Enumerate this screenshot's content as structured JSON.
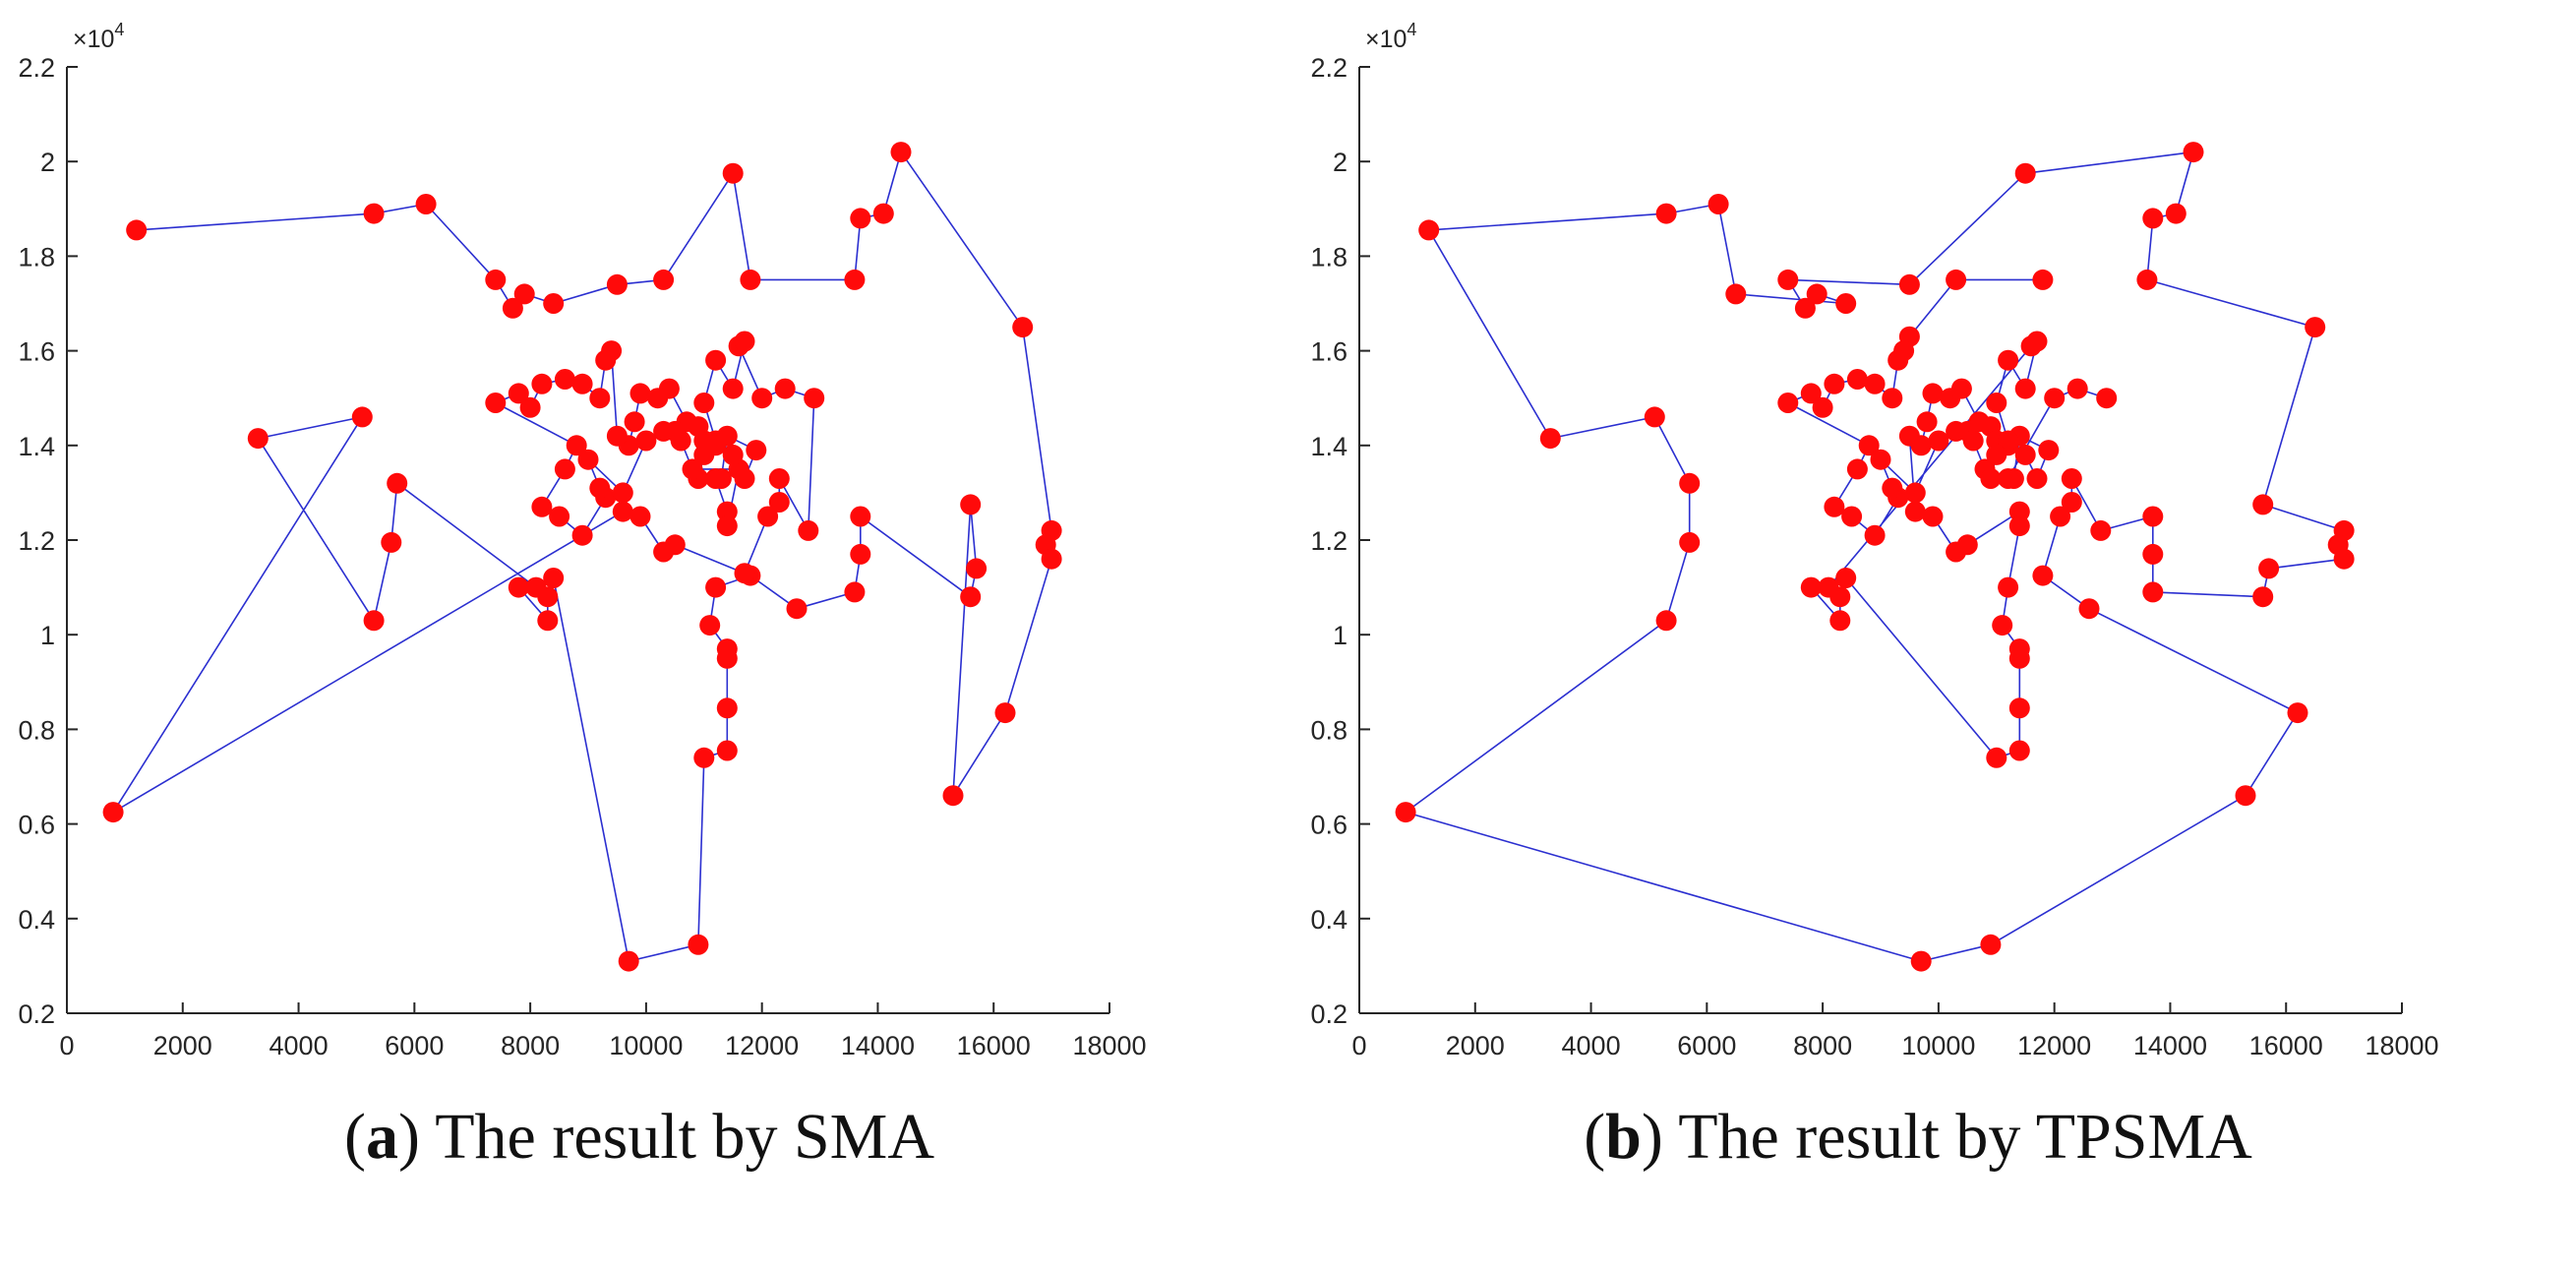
{
  "colors": {
    "line": "#2b2fd0",
    "marker": "#ff0a0a",
    "axis": "#262626"
  },
  "chart_data": [
    {
      "id": "a",
      "type": "line",
      "title": "",
      "xlabel": "",
      "ylabel": "",
      "xlim": [
        0,
        18000
      ],
      "ylim": [
        2000,
        22000
      ],
      "x_ticks": [
        "0",
        "2000",
        "4000",
        "6000",
        "8000",
        "10000",
        "12000",
        "14000",
        "16000",
        "18000"
      ],
      "y_ticks": [
        "0.2",
        "0.4",
        "0.6",
        "0.8",
        "1",
        "1.2",
        "1.4",
        "1.6",
        "1.8",
        "2",
        "2.2"
      ],
      "y_exponent_base": "×10",
      "y_exponent_power": "4",
      "caption_letter": "a",
      "caption_text": "The result by SMA",
      "points": [
        [
          1200,
          18550
        ],
        [
          5300,
          18900
        ],
        [
          6200,
          19100
        ],
        [
          7400,
          17500
        ],
        [
          7700,
          16900
        ],
        [
          7900,
          17200
        ],
        [
          8400,
          17000
        ],
        [
          9500,
          17400
        ],
        [
          10300,
          17500
        ],
        [
          11500,
          19750
        ],
        [
          11800,
          17500
        ],
        [
          13600,
          17500
        ],
        [
          13700,
          18800
        ],
        [
          14100,
          18900
        ],
        [
          14400,
          20200
        ],
        [
          16500,
          16500
        ],
        [
          17000,
          12200
        ],
        [
          16900,
          11900
        ],
        [
          17000,
          11600
        ],
        [
          16200,
          8350
        ],
        [
          15300,
          6600
        ],
        [
          15600,
          12750
        ],
        [
          15700,
          11400
        ],
        [
          15600,
          10800
        ],
        [
          13700,
          12500
        ],
        [
          13700,
          11700
        ],
        [
          13600,
          10900
        ],
        [
          12600,
          10550
        ],
        [
          11800,
          11250
        ],
        [
          11200,
          11000
        ],
        [
          11100,
          10200
        ],
        [
          11400,
          9700
        ],
        [
          11400,
          9500
        ],
        [
          11400,
          8450
        ],
        [
          11400,
          7550
        ],
        [
          11000,
          7400
        ],
        [
          10900,
          3450
        ],
        [
          9700,
          3100
        ],
        [
          8400,
          11200
        ],
        [
          8300,
          10800
        ],
        [
          8300,
          10300
        ],
        [
          7800,
          11000
        ],
        [
          8100,
          11000
        ],
        [
          5700,
          13200
        ],
        [
          5600,
          11950
        ],
        [
          5300,
          10300
        ],
        [
          3300,
          14150
        ],
        [
          5100,
          14600
        ],
        [
          800,
          6250
        ],
        [
          9600,
          12600
        ],
        [
          9900,
          12500
        ],
        [
          10300,
          11750
        ],
        [
          10500,
          11900
        ],
        [
          11700,
          11300
        ],
        [
          12100,
          12500
        ],
        [
          12300,
          12800
        ],
        [
          12300,
          13300
        ],
        [
          12800,
          12200
        ],
        [
          12900,
          15000
        ],
        [
          12400,
          15200
        ],
        [
          12000,
          15000
        ],
        [
          11600,
          16100
        ],
        [
          11700,
          16200
        ],
        [
          11500,
          15200
        ],
        [
          11200,
          15800
        ],
        [
          11000,
          14900
        ],
        [
          11200,
          14100
        ],
        [
          11000,
          13800
        ],
        [
          10900,
          13300
        ],
        [
          11200,
          13300
        ],
        [
          11400,
          12600
        ],
        [
          11400,
          12300
        ],
        [
          11600,
          13500
        ],
        [
          10800,
          13500
        ],
        [
          10600,
          14100
        ],
        [
          10700,
          14500
        ],
        [
          10400,
          15200
        ],
        [
          10200,
          15000
        ],
        [
          9900,
          15100
        ],
        [
          9800,
          14500
        ],
        [
          9700,
          14000
        ],
        [
          9500,
          14200
        ],
        [
          9400,
          16000
        ],
        [
          9300,
          15800
        ],
        [
          9200,
          15000
        ],
        [
          8900,
          15300
        ],
        [
          8600,
          15400
        ],
        [
          8200,
          15300
        ],
        [
          8000,
          14800
        ],
        [
          7800,
          15100
        ],
        [
          7400,
          14900
        ],
        [
          8800,
          14000
        ],
        [
          8600,
          13500
        ],
        [
          8200,
          12700
        ],
        [
          8500,
          12500
        ],
        [
          8900,
          12100
        ],
        [
          9300,
          12900
        ],
        [
          9200,
          13100
        ],
        [
          9000,
          13700
        ],
        [
          9600,
          13000
        ],
        [
          10000,
          14100
        ],
        [
          10300,
          14300
        ],
        [
          10500,
          14300
        ],
        [
          10900,
          14400
        ],
        [
          11000,
          14100
        ],
        [
          11200,
          14000
        ],
        [
          11500,
          13800
        ],
        [
          11700,
          13300
        ],
        [
          11900,
          13900
        ],
        [
          11400,
          14200
        ],
        [
          11300,
          13300
        ]
      ]
    },
    {
      "id": "b",
      "type": "line",
      "title": "",
      "xlabel": "",
      "ylabel": "",
      "xlim": [
        0,
        18000
      ],
      "ylim": [
        2000,
        22000
      ],
      "x_ticks": [
        "0",
        "2000",
        "4000",
        "6000",
        "8000",
        "10000",
        "12000",
        "14000",
        "16000",
        "18000"
      ],
      "y_ticks": [
        "0.2",
        "0.4",
        "0.6",
        "0.8",
        "1",
        "1.2",
        "1.4",
        "1.6",
        "1.8",
        "2",
        "2.2"
      ],
      "y_exponent_base": "×10",
      "y_exponent_power": "4",
      "caption_letter": "b",
      "caption_text": "The result by TPSMA",
      "points": [
        [
          800,
          6250
        ],
        [
          5300,
          10300
        ],
        [
          5700,
          11950
        ],
        [
          5700,
          13200
        ],
        [
          5100,
          14600
        ],
        [
          3300,
          14150
        ],
        [
          1200,
          18550
        ],
        [
          5300,
          18900
        ],
        [
          6200,
          19100
        ],
        [
          6500,
          17200
        ],
        [
          8400,
          17000
        ],
        [
          7900,
          17200
        ],
        [
          7700,
          16900
        ],
        [
          7400,
          17500
        ],
        [
          9500,
          17400
        ],
        [
          11500,
          19750
        ],
        [
          14400,
          20200
        ],
        [
          14100,
          18900
        ],
        [
          13700,
          18800
        ],
        [
          13600,
          17500
        ],
        [
          16500,
          16500
        ],
        [
          15600,
          12750
        ],
        [
          17000,
          12200
        ],
        [
          16900,
          11900
        ],
        [
          17000,
          11600
        ],
        [
          15700,
          11400
        ],
        [
          15600,
          10800
        ],
        [
          13700,
          10900
        ],
        [
          13700,
          11700
        ],
        [
          13700,
          12500
        ],
        [
          12800,
          12200
        ],
        [
          12300,
          13300
        ],
        [
          12300,
          12800
        ],
        [
          12100,
          12500
        ],
        [
          11800,
          11250
        ],
        [
          12600,
          10550
        ],
        [
          16200,
          8350
        ],
        [
          15300,
          6600
        ],
        [
          10900,
          3450
        ],
        [
          9700,
          3100
        ],
        [
          800,
          6250
        ]
      ],
      "inner_points": [
        [
          11800,
          17500
        ],
        [
          10300,
          17500
        ],
        [
          9500,
          16300
        ],
        [
          9400,
          16000
        ],
        [
          9300,
          15800
        ],
        [
          9200,
          15000
        ],
        [
          8900,
          15300
        ],
        [
          8600,
          15400
        ],
        [
          8200,
          15300
        ],
        [
          8000,
          14800
        ],
        [
          7800,
          15100
        ],
        [
          7400,
          14900
        ],
        [
          8800,
          14000
        ],
        [
          8600,
          13500
        ],
        [
          8200,
          12700
        ],
        [
          8500,
          12500
        ],
        [
          8900,
          12100
        ],
        [
          9300,
          12900
        ],
        [
          9200,
          13100
        ],
        [
          9000,
          13700
        ],
        [
          9600,
          13000
        ],
        [
          10000,
          14100
        ],
        [
          10300,
          14300
        ],
        [
          10500,
          14300
        ],
        [
          10900,
          14400
        ],
        [
          11000,
          14100
        ],
        [
          11200,
          14000
        ],
        [
          11500,
          13800
        ],
        [
          11700,
          13300
        ],
        [
          11900,
          13900
        ],
        [
          11400,
          14200
        ],
        [
          11300,
          13300
        ],
        [
          10800,
          13500
        ],
        [
          10600,
          14100
        ],
        [
          10700,
          14500
        ],
        [
          10400,
          15200
        ],
        [
          10200,
          15000
        ],
        [
          9900,
          15100
        ],
        [
          9800,
          14500
        ],
        [
          9700,
          14000
        ],
        [
          9500,
          14200
        ],
        [
          9600,
          12600
        ],
        [
          9900,
          12500
        ],
        [
          10300,
          11750
        ],
        [
          10500,
          11900
        ],
        [
          11400,
          12600
        ],
        [
          11400,
          12300
        ],
        [
          11200,
          11000
        ],
        [
          11100,
          10200
        ],
        [
          11400,
          9700
        ],
        [
          11400,
          9500
        ],
        [
          11400,
          8450
        ],
        [
          11400,
          7550
        ],
        [
          11000,
          7400
        ],
        [
          8400,
          11200
        ],
        [
          8300,
          10800
        ],
        [
          8300,
          10300
        ],
        [
          7800,
          11000
        ],
        [
          8100,
          11000
        ],
        [
          11600,
          16100
        ],
        [
          11700,
          16200
        ],
        [
          11500,
          15200
        ],
        [
          11200,
          15800
        ],
        [
          11000,
          14900
        ],
        [
          11200,
          14100
        ],
        [
          11000,
          13800
        ],
        [
          10900,
          13300
        ],
        [
          11200,
          13300
        ],
        [
          12000,
          15000
        ],
        [
          12400,
          15200
        ],
        [
          12900,
          15000
        ]
      ]
    }
  ]
}
